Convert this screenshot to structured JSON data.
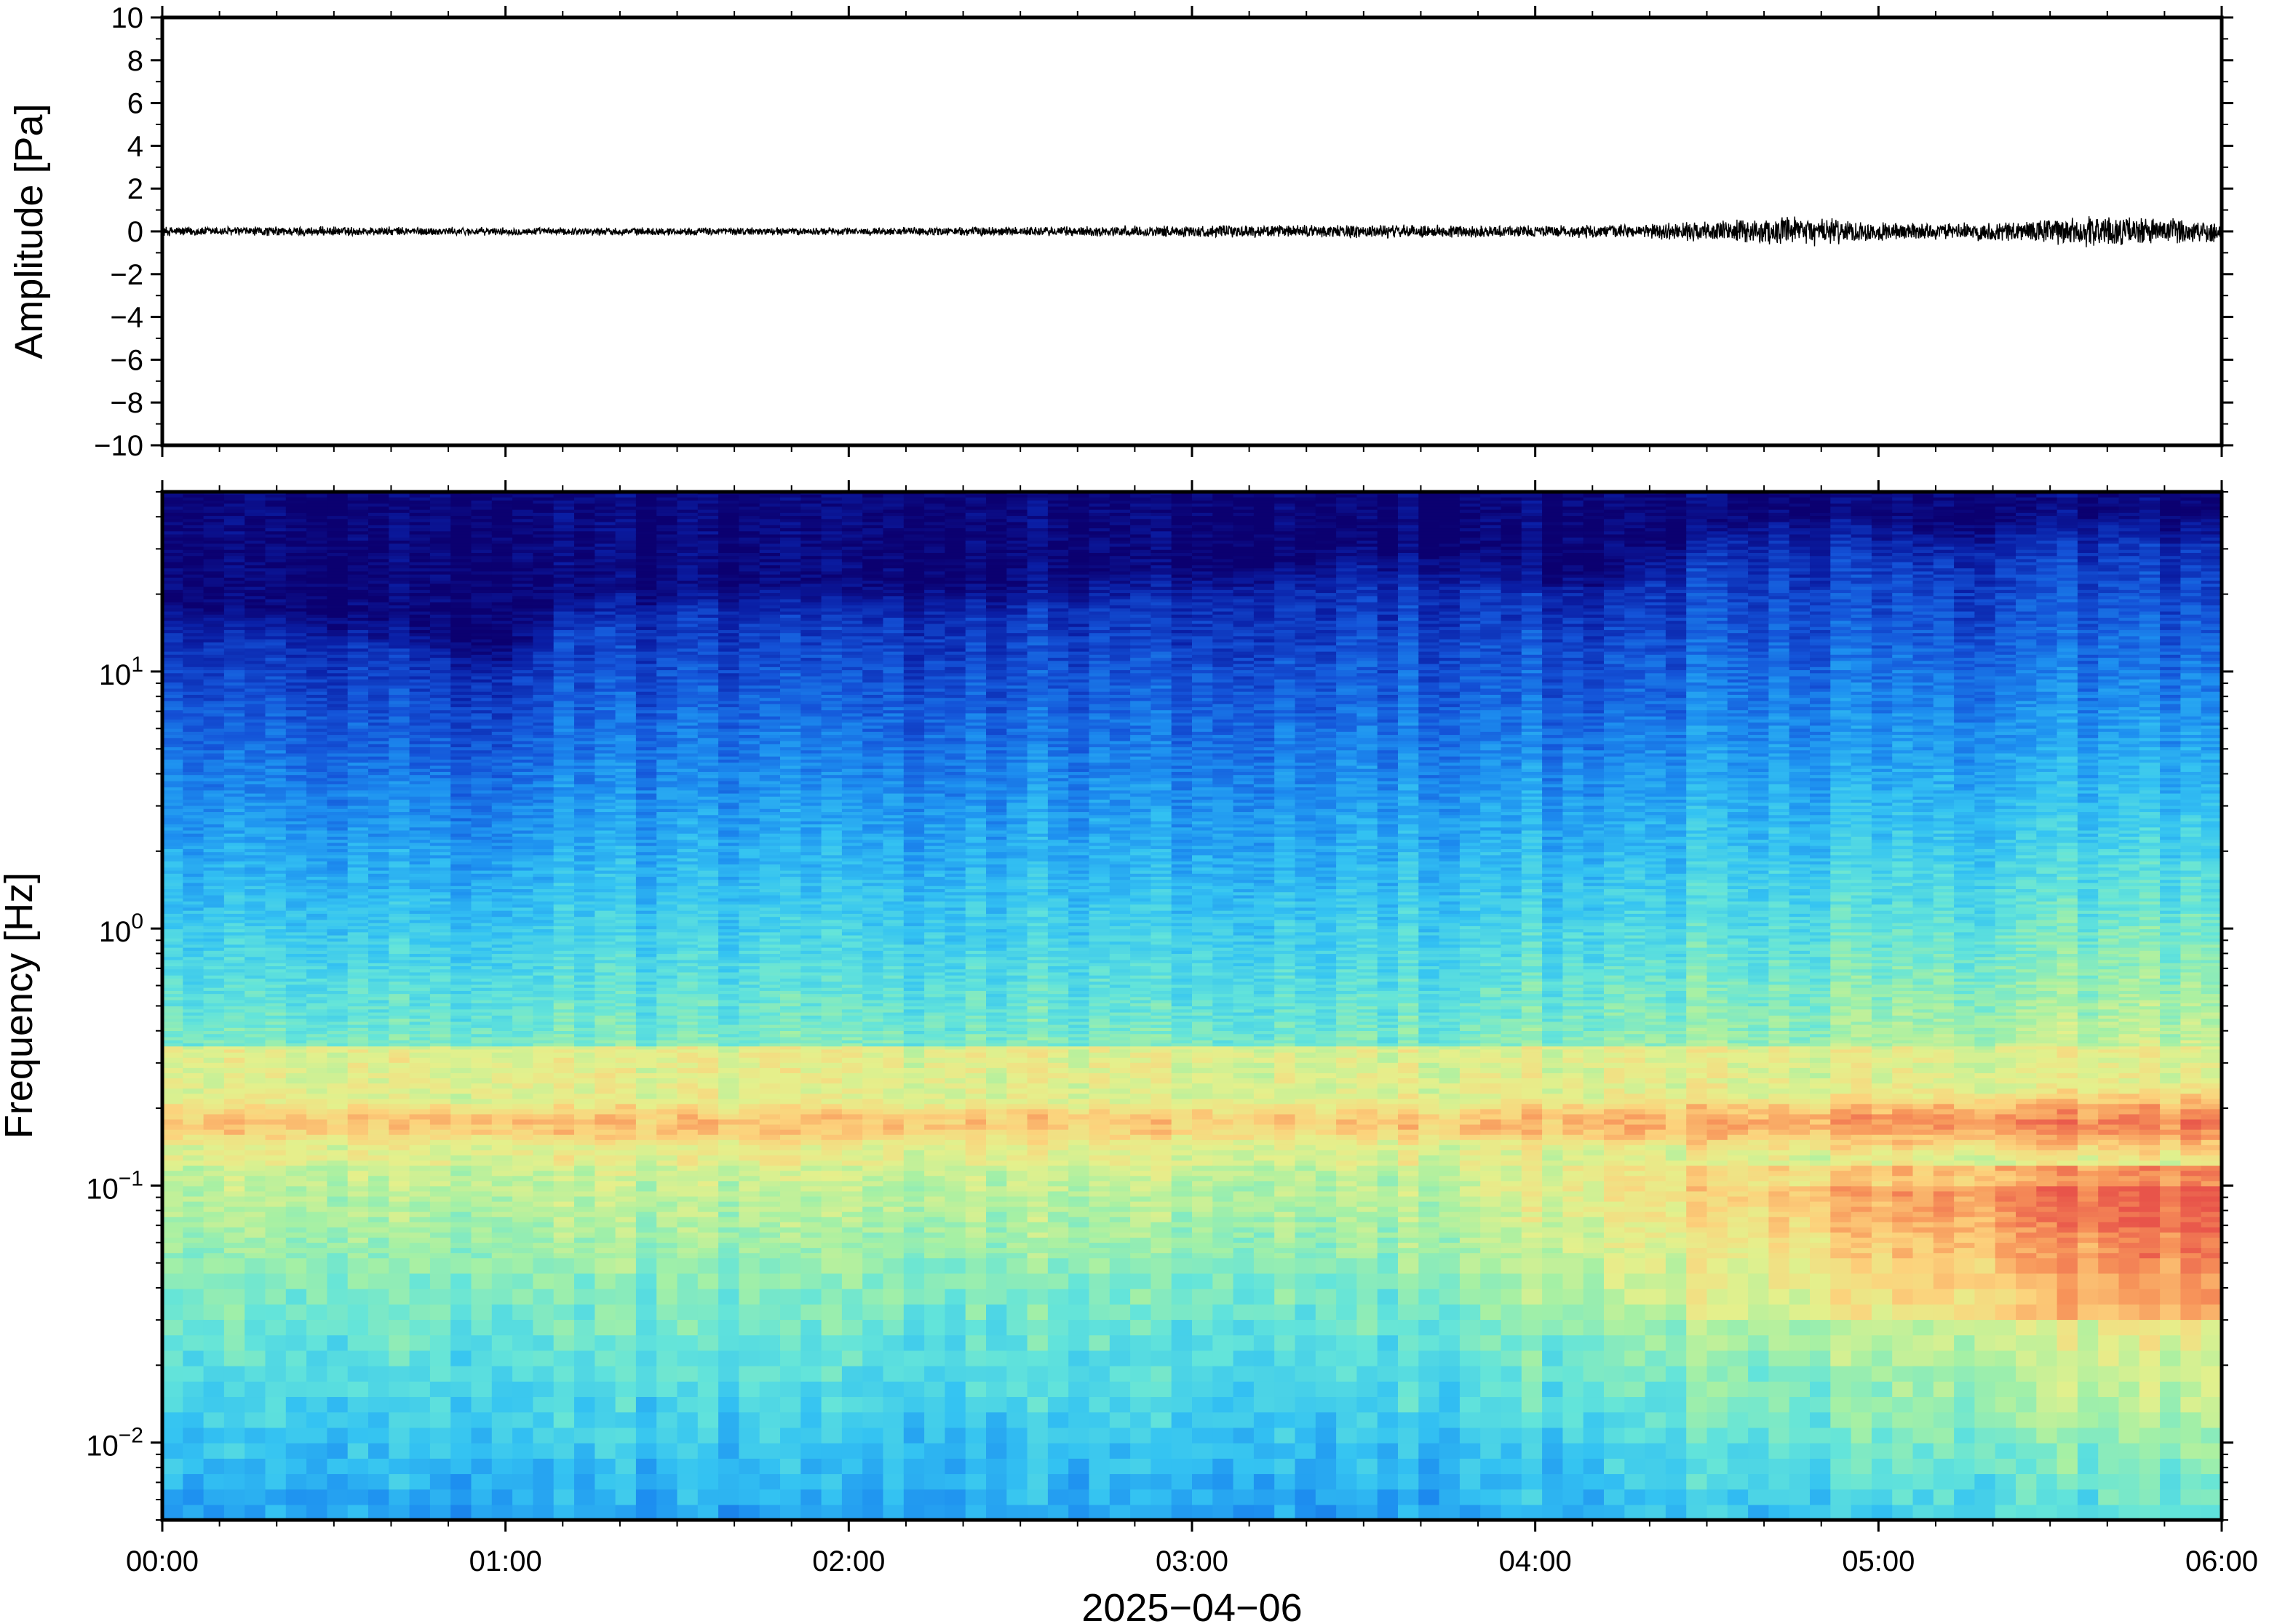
{
  "chart_data": [
    {
      "type": "line",
      "panel": "waveform",
      "title": "",
      "ylabel": "Amplitude [Pa]",
      "ylim": [
        -10,
        10
      ],
      "yticks": [
        10,
        8,
        6,
        4,
        2,
        0,
        -2,
        -4,
        -6,
        -8,
        -10
      ],
      "ytick_labels": [
        "10",
        "8",
        "6",
        "4",
        "2",
        "0",
        "−2",
        "−4",
        "−6",
        "−8",
        "−10"
      ],
      "x_range_hours": [
        0,
        6
      ],
      "envelope": {
        "hours": [
          0,
          0.5,
          1.0,
          1.5,
          2.0,
          2.5,
          3.0,
          3.5,
          4.0,
          4.3,
          4.6,
          4.8,
          5.0,
          5.2,
          5.4,
          5.6,
          5.8,
          6.0
        ],
        "amplitude_pa": [
          0.25,
          0.25,
          0.2,
          0.2,
          0.2,
          0.25,
          0.3,
          0.35,
          0.3,
          0.35,
          0.6,
          0.75,
          0.5,
          0.4,
          0.55,
          0.8,
          0.7,
          0.6
        ]
      },
      "line_color": "#000000"
    },
    {
      "type": "heatmap",
      "panel": "spectrogram",
      "title": "",
      "ylabel": "Frequency [Hz]",
      "yscale": "log",
      "ylim": [
        0.005,
        50
      ],
      "yticks": [
        {
          "base": "10",
          "exp": "1",
          "value": 10
        },
        {
          "base": "10",
          "exp": "0",
          "value": 1
        },
        {
          "base": "10",
          "exp": "−1",
          "value": 0.1
        },
        {
          "base": "10",
          "exp": "−2",
          "value": 0.01
        }
      ],
      "xlabel": "2025−04−06",
      "x_range_hours": [
        0,
        6
      ],
      "xticks": [
        "00:00",
        "01:00",
        "02:00",
        "03:00",
        "04:00",
        "05:00",
        "06:00"
      ],
      "colormap": "jet",
      "colormap_stops": [
        "#0b0070",
        "#0a1fa6",
        "#1453d8",
        "#1d8ff0",
        "#34c3f2",
        "#63e4da",
        "#a6f0a4",
        "#e4f08c",
        "#fcd27c",
        "#f7955a",
        "#e8544a"
      ],
      "high_frequency_cutoff_hz": {
        "hours": [
          0,
          0.6,
          1.0,
          1.2,
          1.6,
          2.0,
          2.4,
          2.8,
          3.2,
          3.4,
          3.8,
          4.2,
          4.6,
          4.9,
          5.2,
          5.4,
          5.7,
          6.0
        ],
        "hz": [
          13,
          12,
          9,
          15,
          16,
          16,
          16,
          18,
          19,
          22,
          21,
          17,
          30,
          30,
          27,
          30,
          31,
          30
        ]
      },
      "microbarom_band_hz": [
        0.14,
        0.22
      ]
    }
  ]
}
